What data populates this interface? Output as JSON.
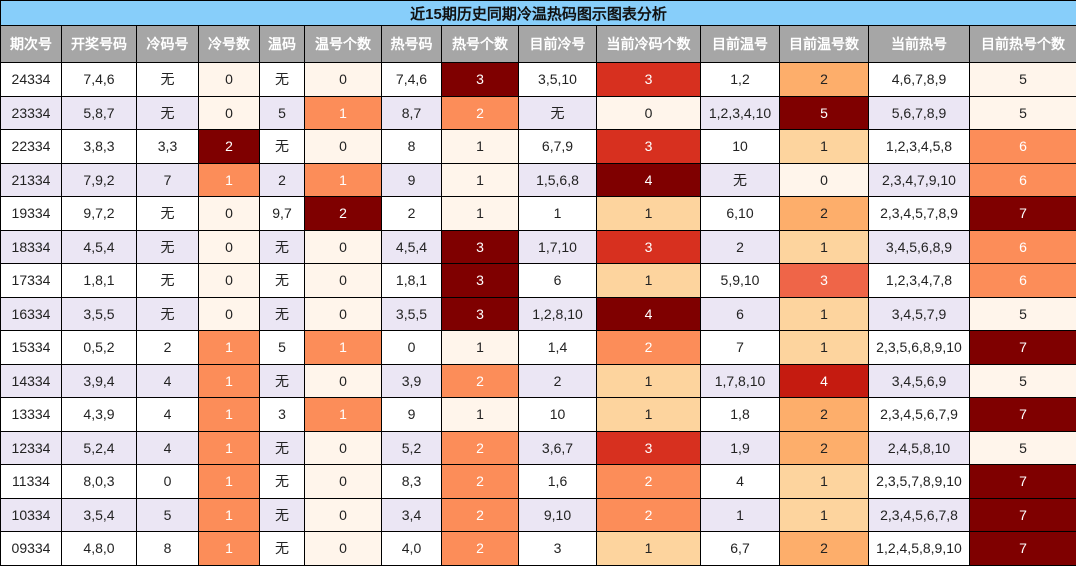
{
  "title": "近15期历史同期冷温热码图示图表分析",
  "columns": [
    "期次号",
    "开奖号码",
    "冷码号",
    "冷号数",
    "温码",
    "温号个数",
    "热号码",
    "热号个数",
    "目前冷号",
    "当前冷码个数",
    "目前温号",
    "目前温号数",
    "当前热号",
    "目前热号个数"
  ],
  "heat_columns": [
    3,
    5,
    7,
    9,
    11,
    13
  ],
  "palette": {
    "c0": "#fff5eb",
    "c1": "#fdd49e",
    "c2": "#fdae6b",
    "c3": "#fc8d59",
    "c4": "#ef6548",
    "c5": "#d7301f",
    "c6": "#c51b10",
    "c7": "#7f0000",
    "header_bg": "#a6a6a6",
    "title_bg": "#87cefa",
    "row_alt_bg": "#ebe6f4"
  },
  "rows": [
    {
      "cells": [
        "24334",
        "7,4,6",
        "无",
        "0",
        "无",
        "0",
        "7,4,6",
        "3",
        "3,5,10",
        "3",
        "1,2",
        "2",
        "4,6,7,8,9",
        "5"
      ],
      "colors": {
        "3": "#fff5eb",
        "5": "#fff5eb",
        "7": "#7f0000",
        "9": "#d7301f",
        "11": "#fdae6b",
        "13": "#fff5eb"
      }
    },
    {
      "cells": [
        "23334",
        "5,8,7",
        "无",
        "0",
        "5",
        "1",
        "8,7",
        "2",
        "无",
        "0",
        "1,2,3,4,10",
        "5",
        "5,6,7,8,9",
        "5"
      ],
      "colors": {
        "3": "#fff5eb",
        "5": "#fc8d59",
        "7": "#fc8d59",
        "9": "#fff5eb",
        "11": "#7f0000",
        "13": "#fff5eb"
      }
    },
    {
      "cells": [
        "22334",
        "3,8,3",
        "3,3",
        "2",
        "无",
        "0",
        "8",
        "1",
        "6,7,9",
        "3",
        "10",
        "1",
        "1,2,3,4,5,8",
        "6"
      ],
      "colors": {
        "3": "#7f0000",
        "5": "#fff5eb",
        "7": "#fff5eb",
        "9": "#d7301f",
        "11": "#fdd49e",
        "13": "#fc8d59"
      }
    },
    {
      "cells": [
        "21334",
        "7,9,2",
        "7",
        "1",
        "2",
        "1",
        "9",
        "1",
        "1,5,6,8",
        "4",
        "无",
        "0",
        "2,3,4,7,9,10",
        "6"
      ],
      "colors": {
        "3": "#fc8d59",
        "5": "#fc8d59",
        "7": "#fff5eb",
        "9": "#7f0000",
        "11": "#fff5eb",
        "13": "#fc8d59"
      }
    },
    {
      "cells": [
        "19334",
        "9,7,2",
        "无",
        "0",
        "9,7",
        "2",
        "2",
        "1",
        "1",
        "1",
        "6,10",
        "2",
        "2,3,4,5,7,8,9",
        "7"
      ],
      "colors": {
        "3": "#fff5eb",
        "5": "#7f0000",
        "7": "#fff5eb",
        "9": "#fdd49e",
        "11": "#fdae6b",
        "13": "#7f0000"
      }
    },
    {
      "cells": [
        "18334",
        "4,5,4",
        "无",
        "0",
        "无",
        "0",
        "4,5,4",
        "3",
        "1,7,10",
        "3",
        "2",
        "1",
        "3,4,5,6,8,9",
        "6"
      ],
      "colors": {
        "3": "#fff5eb",
        "5": "#fff5eb",
        "7": "#7f0000",
        "9": "#d7301f",
        "11": "#fdd49e",
        "13": "#fc8d59"
      }
    },
    {
      "cells": [
        "17334",
        "1,8,1",
        "无",
        "0",
        "无",
        "0",
        "1,8,1",
        "3",
        "6",
        "1",
        "5,9,10",
        "3",
        "1,2,3,4,7,8",
        "6"
      ],
      "colors": {
        "3": "#fff5eb",
        "5": "#fff5eb",
        "7": "#7f0000",
        "9": "#fdd49e",
        "11": "#ef6548",
        "13": "#fc8d59"
      }
    },
    {
      "cells": [
        "16334",
        "3,5,5",
        "无",
        "0",
        "无",
        "0",
        "3,5,5",
        "3",
        "1,2,8,10",
        "4",
        "6",
        "1",
        "3,4,5,7,9",
        "5"
      ],
      "colors": {
        "3": "#fff5eb",
        "5": "#fff5eb",
        "7": "#7f0000",
        "9": "#7f0000",
        "11": "#fdd49e",
        "13": "#fff5eb"
      }
    },
    {
      "cells": [
        "15334",
        "0,5,2",
        "2",
        "1",
        "5",
        "1",
        "0",
        "1",
        "1,4",
        "2",
        "7",
        "1",
        "2,3,5,6,8,9,10",
        "7"
      ],
      "colors": {
        "3": "#fc8d59",
        "5": "#fc8d59",
        "7": "#fff5eb",
        "9": "#fc8d59",
        "11": "#fdd49e",
        "13": "#7f0000"
      }
    },
    {
      "cells": [
        "14334",
        "3,9,4",
        "4",
        "1",
        "无",
        "0",
        "3,9",
        "2",
        "2",
        "1",
        "1,7,8,10",
        "4",
        "3,4,5,6,9",
        "5"
      ],
      "colors": {
        "3": "#fc8d59",
        "5": "#fff5eb",
        "7": "#fc8d59",
        "9": "#fdd49e",
        "11": "#c51b10",
        "13": "#fff5eb"
      }
    },
    {
      "cells": [
        "13334",
        "4,3,9",
        "4",
        "1",
        "3",
        "1",
        "9",
        "1",
        "10",
        "1",
        "1,8",
        "2",
        "2,3,4,5,6,7,9",
        "7"
      ],
      "colors": {
        "3": "#fc8d59",
        "5": "#fc8d59",
        "7": "#fff5eb",
        "9": "#fdd49e",
        "11": "#fdae6b",
        "13": "#7f0000"
      }
    },
    {
      "cells": [
        "12334",
        "5,2,4",
        "4",
        "1",
        "无",
        "0",
        "5,2",
        "2",
        "3,6,7",
        "3",
        "1,9",
        "2",
        "2,4,5,8,10",
        "5"
      ],
      "colors": {
        "3": "#fc8d59",
        "5": "#fff5eb",
        "7": "#fc8d59",
        "9": "#d7301f",
        "11": "#fdae6b",
        "13": "#fff5eb"
      }
    },
    {
      "cells": [
        "11334",
        "8,0,3",
        "0",
        "1",
        "无",
        "0",
        "8,3",
        "2",
        "1,6",
        "2",
        "4",
        "1",
        "2,3,5,7,8,9,10",
        "7"
      ],
      "colors": {
        "3": "#fc8d59",
        "5": "#fff5eb",
        "7": "#fc8d59",
        "9": "#fc8d59",
        "11": "#fdd49e",
        "13": "#7f0000"
      }
    },
    {
      "cells": [
        "10334",
        "3,5,4",
        "5",
        "1",
        "无",
        "0",
        "3,4",
        "2",
        "9,10",
        "2",
        "1",
        "1",
        "2,3,4,5,6,7,8",
        "7"
      ],
      "colors": {
        "3": "#fc8d59",
        "5": "#fff5eb",
        "7": "#fc8d59",
        "9": "#fc8d59",
        "11": "#fdd49e",
        "13": "#7f0000"
      }
    },
    {
      "cells": [
        "09334",
        "4,8,0",
        "8",
        "1",
        "无",
        "0",
        "4,0",
        "2",
        "3",
        "1",
        "6,7",
        "2",
        "1,2,4,5,8,9,10",
        "7"
      ],
      "colors": {
        "3": "#fc8d59",
        "5": "#fff5eb",
        "7": "#fc8d59",
        "9": "#fdd49e",
        "11": "#fdae6b",
        "13": "#7f0000"
      }
    }
  ]
}
